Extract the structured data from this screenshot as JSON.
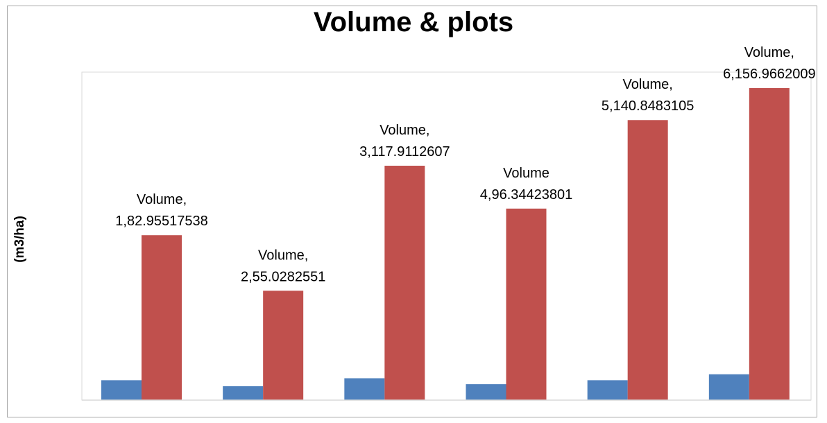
{
  "chart_data": {
    "type": "bar",
    "title": "Volume & plots",
    "xlabel": "",
    "ylabel": "(m3/ha)",
    "ylim": [
      0,
      165
    ],
    "grid": false,
    "legend": "none",
    "categories": [
      "1",
      "2",
      "3",
      "4",
      "5",
      "6"
    ],
    "series": [
      {
        "color": "#4f81bd",
        "values": [
          10,
          7,
          11,
          8,
          10,
          13
        ]
      },
      {
        "color": "#c0504d",
        "values": [
          82.95517538,
          55.0282551,
          117.9112607,
          96.34423801,
          140.8483105,
          156.9662009
        ]
      }
    ],
    "data_labels": [
      [
        "Volume,",
        "1,82.95517538"
      ],
      [
        "Volume,",
        "2,55.0282551"
      ],
      [
        "Volume,",
        "3,117.9112607"
      ],
      [
        "Volume",
        "4,96.34423801"
      ],
      [
        "Volume,",
        "5,140.8483105"
      ],
      [
        "Volume,",
        "6,156.9662009"
      ]
    ]
  }
}
